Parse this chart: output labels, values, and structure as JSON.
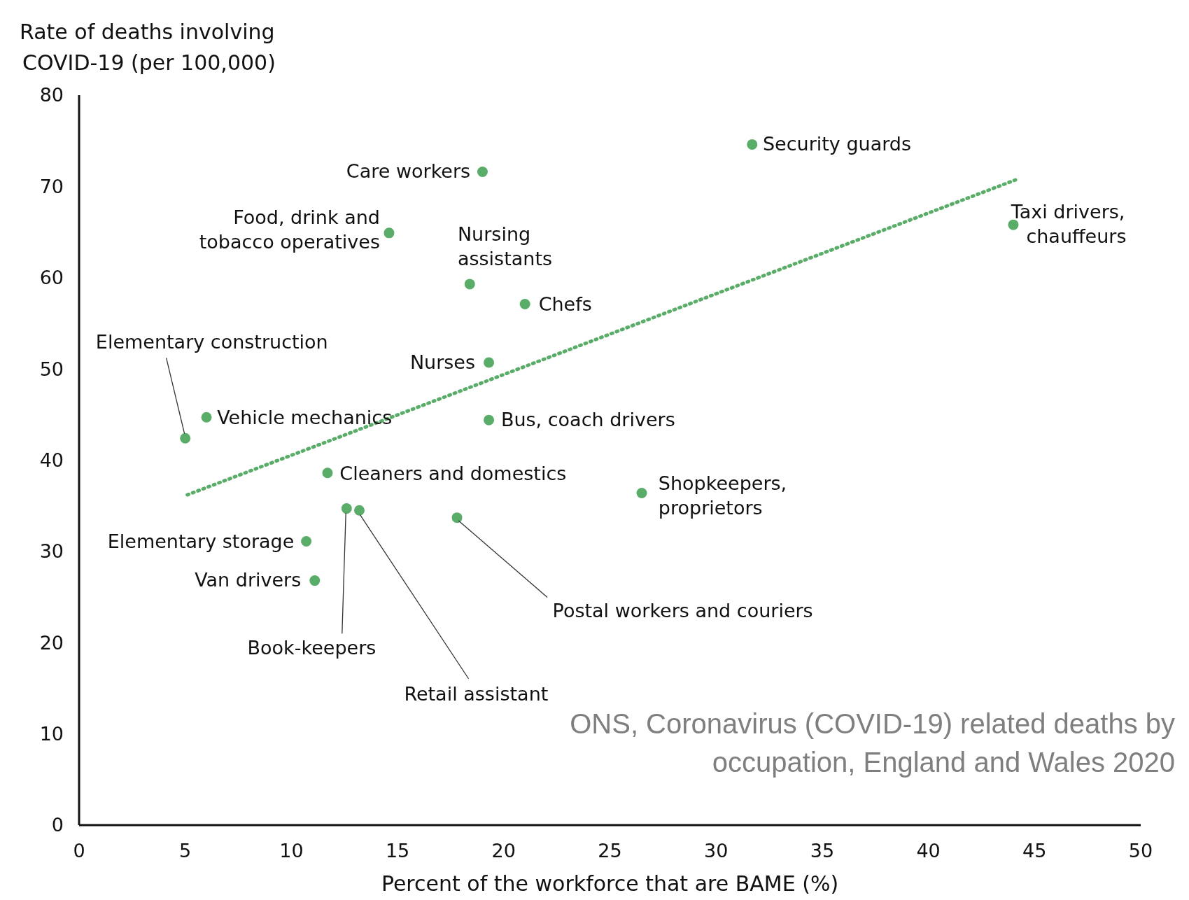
{
  "chart_data": {
    "type": "scatter",
    "ylabel": "Rate of deaths involving\nCOVID-19 (per 100,000)",
    "xlabel": "Percent of the workforce that are BAME (%)",
    "xlim": [
      0,
      50
    ],
    "xticks": [
      0,
      5,
      10,
      15,
      20,
      25,
      30,
      35,
      40,
      45,
      50
    ],
    "ylim": [
      0,
      80
    ],
    "yticks": [
      0,
      10,
      20,
      30,
      40,
      50,
      60,
      70,
      80
    ],
    "grid": false,
    "marker": "circle",
    "series": [
      {
        "color": "#5aad69",
        "x": [
          31.7,
          19.0,
          14.6,
          18.4,
          21.0,
          44.0,
          19.3,
          19.3,
          6.0,
          5.0,
          11.7,
          26.5,
          12.6,
          13.2,
          17.8,
          10.7,
          11.1
        ],
        "values": [
          74.6,
          71.6,
          64.9,
          59.3,
          57.1,
          65.8,
          50.7,
          44.4,
          44.7,
          42.4,
          38.6,
          36.4,
          34.7,
          34.5,
          33.7,
          31.1,
          26.8
        ]
      },
      {
        "type": "line",
        "color": "#5aad69",
        "marker": "none",
        "line_style": "dotted",
        "x": [
          5.1,
          44.2
        ],
        "values": [
          36.2,
          70.8
        ]
      }
    ],
    "annotations": [
      {
        "text": "Security guards",
        "x": 31.7,
        "y": 74.6
      },
      {
        "text": "Care workers",
        "x": 19.0,
        "y": 71.6
      },
      {
        "text": "Food, drink and\ntobacco operatives",
        "x": 14.6,
        "y": 64.9
      },
      {
        "text": "Nursing\nassistants",
        "x": 18.4,
        "y": 59.3
      },
      {
        "text": "Chefs",
        "x": 21.0,
        "y": 57.1
      },
      {
        "text": "Taxi drivers,\nchauffeurs",
        "x": 44.0,
        "y": 65.8
      },
      {
        "text": "Nurses",
        "x": 19.3,
        "y": 50.7
      },
      {
        "text": "Bus, coach drivers",
        "x": 19.3,
        "y": 44.4
      },
      {
        "text": "Vehicle mechanics",
        "x": 6.0,
        "y": 44.7
      },
      {
        "text": "Elementary construction",
        "x": 5.0,
        "y": 42.4
      },
      {
        "text": "Cleaners and domestics",
        "x": 11.7,
        "y": 38.6
      },
      {
        "text": "Shopkeepers,\nproprietors",
        "x": 26.5,
        "y": 36.4
      },
      {
        "text": "Book-keepers",
        "x": 12.6,
        "y": 34.7
      },
      {
        "text": "Retail assistant",
        "x": 13.2,
        "y": 34.5
      },
      {
        "text": "Postal workers and couriers",
        "x": 17.8,
        "y": 33.7
      },
      {
        "text": "Elementary storage",
        "x": 10.7,
        "y": 31.1
      },
      {
        "text": "Van drivers",
        "x": 11.1,
        "y": 26.8
      },
      "ONS, Coronavirus (COVID-19) related deaths by\noccupation, England and Wales 2020"
    ]
  }
}
